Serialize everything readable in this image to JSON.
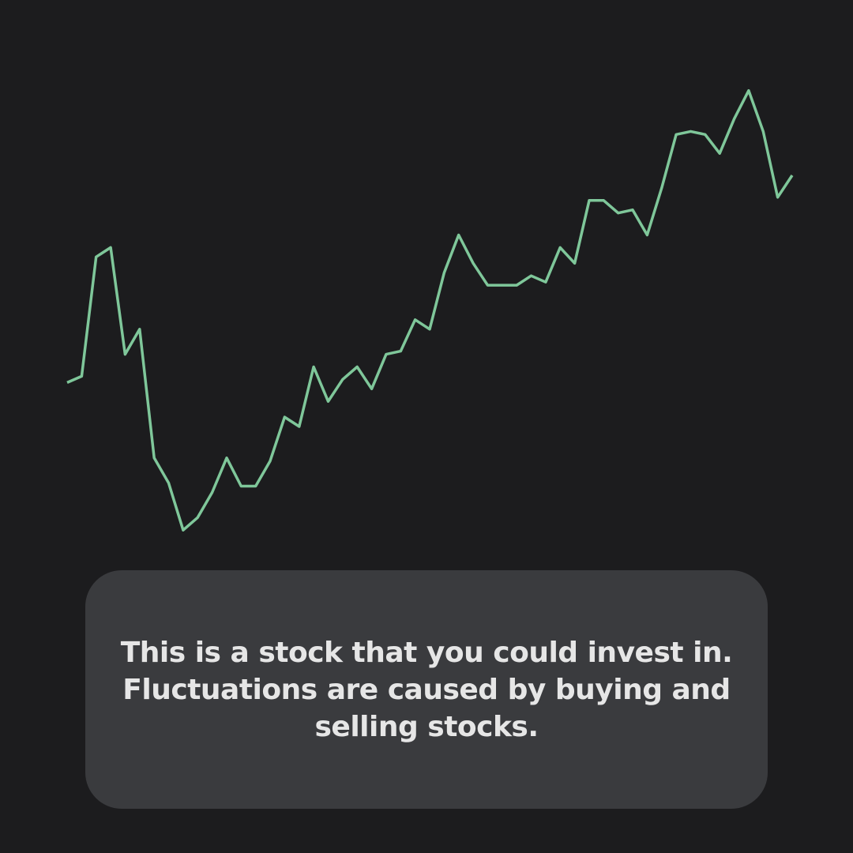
{
  "caption": {
    "text": "This is a stock that you could invest in. Fluctuations are caused by buying and selling stocks."
  },
  "colors": {
    "background": "#1c1c1e",
    "line": "#7fc79a",
    "card": "#3a3b3e",
    "text": "#e6e6e6"
  },
  "chart_data": {
    "type": "line",
    "title": "",
    "xlabel": "",
    "ylabel": "",
    "grid": false,
    "axes_visible": false,
    "x": [
      0,
      1,
      2,
      3,
      4,
      5,
      6,
      7,
      8,
      9,
      10,
      11,
      12,
      13,
      14,
      15,
      16,
      17,
      18,
      19,
      20,
      21,
      22,
      23,
      24,
      25,
      26,
      27,
      28,
      29,
      30,
      31,
      32,
      33,
      34,
      35,
      36,
      37,
      38,
      39,
      40,
      41,
      42,
      43,
      44,
      45,
      46,
      47,
      48,
      49,
      50
    ],
    "series": [
      {
        "values": [
          54,
          56,
          94,
          97,
          63,
          71,
          30,
          22,
          7,
          11,
          19,
          30,
          21,
          21,
          29,
          43,
          40,
          59,
          48,
          55,
          59,
          52,
          63,
          64,
          74,
          71,
          89,
          101,
          92,
          85,
          85,
          85,
          88,
          86,
          97,
          92,
          112,
          112,
          108,
          109,
          101,
          116,
          133,
          134,
          133,
          127,
          138,
          147,
          134,
          113,
          120
        ]
      }
    ],
    "ylim": [
      0,
      160
    ]
  }
}
